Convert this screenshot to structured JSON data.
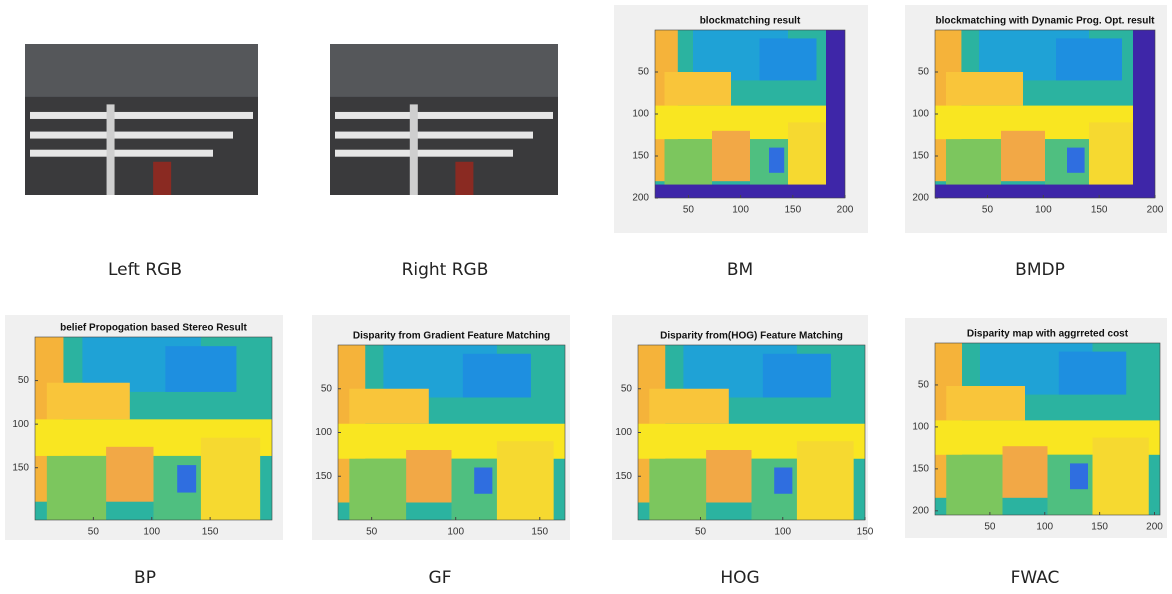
{
  "panels": [
    {
      "caption": "Left RGB"
    },
    {
      "caption": "Right RGB"
    },
    {
      "caption": "BM",
      "title": "blockmatching result",
      "xlim": [
        18,
        200
      ],
      "ylim": [
        0,
        200
      ],
      "xticks": [
        50,
        100,
        150,
        200
      ],
      "yticks": [
        50,
        100,
        150,
        200
      ]
    },
    {
      "caption": "BMDP",
      "title": "blockmatching with Dynamic Prog. Opt. result",
      "xlim": [
        3,
        200
      ],
      "ylim": [
        0,
        200
      ],
      "xticks": [
        50,
        100,
        150,
        200
      ],
      "yticks": [
        50,
        100,
        150,
        200
      ]
    },
    {
      "caption": "BP",
      "title": "belief Propogation based Stereo Result",
      "xlim": [
        0,
        203
      ],
      "ylim": [
        0,
        210
      ],
      "xticks": [
        50,
        100,
        150
      ],
      "yticks": [
        50,
        100,
        150
      ]
    },
    {
      "caption": "GF",
      "title": "Disparity from Gradient Feature Matching",
      "xlim": [
        30,
        165
      ],
      "ylim": [
        0,
        200
      ],
      "xticks": [
        50,
        100,
        150
      ],
      "yticks": [
        50,
        100,
        150
      ]
    },
    {
      "caption": "HOG",
      "title": "Disparity from(HOG) Feature Matching",
      "xlim": [
        12,
        150
      ],
      "ylim": [
        0,
        200
      ],
      "xticks": [
        50,
        100,
        150
      ],
      "yticks": [
        50,
        100,
        150
      ]
    },
    {
      "caption": "FWAC",
      "title": "Disparity map with aggrreted cost",
      "xlim": [
        0,
        205
      ],
      "ylim": [
        0,
        205
      ],
      "xticks": [
        50,
        100,
        150,
        200
      ],
      "yticks": [
        50,
        100,
        150,
        200
      ]
    }
  ]
}
